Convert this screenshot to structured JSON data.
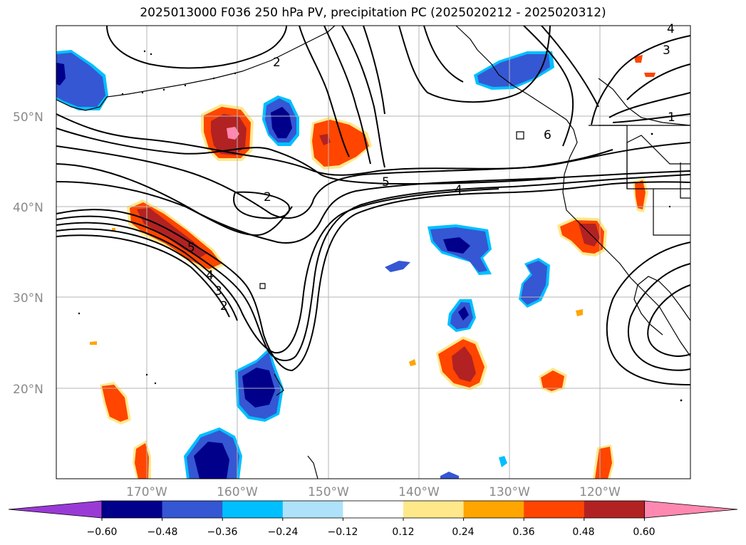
{
  "title": "2025013000 F036 250 hPa PV, precipitation PC (2025020212 - 2025020312)",
  "map": {
    "lat_labels": [
      "50°N",
      "40°N",
      "30°N",
      "20°N"
    ],
    "lon_labels": [
      "170°W",
      "160°W",
      "150°W",
      "140°W",
      "130°W",
      "120°W"
    ],
    "contour_labels": [
      "5",
      "4",
      "3",
      "2",
      "1",
      "2",
      "5",
      "4",
      "3",
      "2",
      "6",
      "4"
    ]
  },
  "colorbar": {
    "ticks": [
      "−0.60",
      "−0.48",
      "−0.36",
      "−0.24",
      "−0.12",
      "0.12",
      "0.24",
      "0.36",
      "0.48",
      "0.60"
    ],
    "colors": [
      "#9a3ad6",
      "#00008b",
      "#3557d3",
      "#00bfff",
      "#aee2fb",
      "#ffffff",
      "#ffe88a",
      "#ffa500",
      "#ff4500",
      "#b22222",
      "#ff88b0"
    ]
  }
}
